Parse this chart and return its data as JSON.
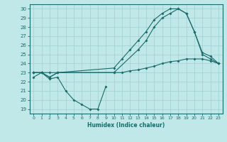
{
  "xlabel": "Humidex (Indice chaleur)",
  "bg_color": "#c0e8e8",
  "grid_color": "#a0d0d0",
  "line_color": "#1a6b6b",
  "xlim": [
    -0.5,
    23.5
  ],
  "ylim": [
    18.5,
    30.5
  ],
  "xticks": [
    0,
    1,
    2,
    3,
    4,
    5,
    6,
    7,
    8,
    9,
    10,
    11,
    12,
    13,
    14,
    15,
    16,
    17,
    18,
    19,
    20,
    21,
    22,
    23
  ],
  "yticks": [
    19,
    20,
    21,
    22,
    23,
    24,
    25,
    26,
    27,
    28,
    29,
    30
  ],
  "curve_dip_x": [
    0,
    1,
    2,
    3,
    4,
    5,
    6,
    7,
    8,
    9
  ],
  "curve_dip_y": [
    22.5,
    23.0,
    22.3,
    22.5,
    21.0,
    20.0,
    19.5,
    19.0,
    19.0,
    21.5
  ],
  "curve_top_x": [
    0,
    1,
    2,
    3,
    10,
    11,
    12,
    13,
    14,
    15,
    16,
    17,
    18,
    19,
    20,
    21,
    22,
    23
  ],
  "curve_top_y": [
    23.0,
    23.0,
    22.5,
    23.0,
    23.5,
    24.5,
    25.5,
    26.5,
    27.5,
    28.8,
    29.5,
    30.0,
    30.0,
    29.5,
    27.5,
    25.0,
    24.5,
    24.0
  ],
  "curve_steep_x": [
    0,
    1,
    2,
    3,
    10,
    13,
    14,
    15,
    16,
    17,
    18,
    19,
    20,
    21,
    22,
    23
  ],
  "curve_steep_y": [
    23.0,
    23.0,
    22.5,
    23.0,
    23.0,
    25.5,
    26.5,
    28.0,
    29.0,
    29.5,
    30.0,
    29.5,
    27.5,
    25.2,
    24.8,
    24.0
  ],
  "curve_flat_x": [
    0,
    1,
    2,
    3,
    10,
    11,
    12,
    13,
    14,
    15,
    16,
    17,
    18,
    19,
    20,
    21,
    22,
    23
  ],
  "curve_flat_y": [
    23.0,
    23.0,
    23.0,
    23.0,
    23.0,
    23.0,
    23.2,
    23.3,
    23.5,
    23.7,
    24.0,
    24.2,
    24.3,
    24.5,
    24.5,
    24.5,
    24.3,
    24.0
  ]
}
